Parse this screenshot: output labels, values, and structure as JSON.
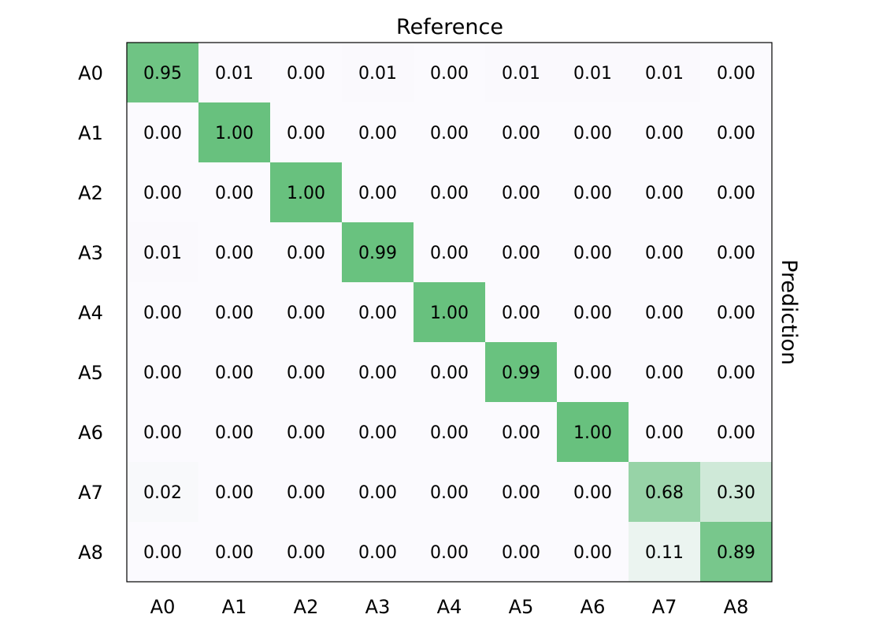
{
  "chart_data": {
    "type": "heatmap",
    "title": "Reference",
    "ylabel_right": "Prediction",
    "row_labels": [
      "A0",
      "A1",
      "A2",
      "A3",
      "A4",
      "A5",
      "A6",
      "A7",
      "A8"
    ],
    "col_labels": [
      "A0",
      "A1",
      "A2",
      "A3",
      "A4",
      "A5",
      "A6",
      "A7",
      "A8"
    ],
    "values": [
      [
        0.95,
        0.01,
        0.0,
        0.01,
        0.0,
        0.01,
        0.01,
        0.01,
        0.0
      ],
      [
        0.0,
        1.0,
        0.0,
        0.0,
        0.0,
        0.0,
        0.0,
        0.0,
        0.0
      ],
      [
        0.0,
        0.0,
        1.0,
        0.0,
        0.0,
        0.0,
        0.0,
        0.0,
        0.0
      ],
      [
        0.01,
        0.0,
        0.0,
        0.99,
        0.0,
        0.0,
        0.0,
        0.0,
        0.0
      ],
      [
        0.0,
        0.0,
        0.0,
        0.0,
        1.0,
        0.0,
        0.0,
        0.0,
        0.0
      ],
      [
        0.0,
        0.0,
        0.0,
        0.0,
        0.0,
        0.99,
        0.0,
        0.0,
        0.0
      ],
      [
        0.0,
        0.0,
        0.0,
        0.0,
        0.0,
        0.0,
        1.0,
        0.0,
        0.0
      ],
      [
        0.02,
        0.0,
        0.0,
        0.0,
        0.0,
        0.0,
        0.0,
        0.68,
        0.3
      ],
      [
        0.0,
        0.0,
        0.0,
        0.0,
        0.0,
        0.0,
        0.0,
        0.11,
        0.89
      ]
    ],
    "value_range": [
      0,
      1
    ],
    "colors": {
      "low": "#fbfafe",
      "high": "#68c17e",
      "border": "#000000"
    }
  }
}
